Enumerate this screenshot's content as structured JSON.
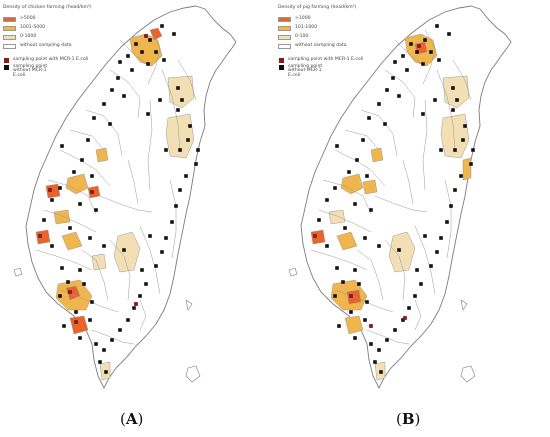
{
  "panels": [
    {
      "id": "A",
      "caption_open": "(",
      "caption_letter": "A",
      "caption_close": ")",
      "legend": {
        "title": "Density of chicken farming (head/km²)",
        "classes": [
          {
            "label": ">5000",
            "color": "#e8642a"
          },
          {
            "label": "1001-5000",
            "color": "#f0b54c"
          },
          {
            "label": "0-1000",
            "color": "#f2dfb4"
          },
          {
            "label": "without sampling data",
            "color": "#ffffff"
          }
        ],
        "points": [
          {
            "label": "sampling point with MCR-1 E.coli",
            "color": "#8b1a1a"
          },
          {
            "label": "sampling point without MCR-1 E.coli",
            "color": "#111111"
          }
        ]
      }
    },
    {
      "id": "B",
      "caption_open": "(",
      "caption_letter": "B",
      "caption_close": ")",
      "legend": {
        "title": "Density of pig farming (head/km²)",
        "classes": [
          {
            "label": ">1000",
            "color": "#e8642a"
          },
          {
            "label": "101-1000",
            "color": "#f0b54c"
          },
          {
            "label": "0-100",
            "color": "#f2dfb4"
          },
          {
            "label": "without sampling data",
            "color": "#ffffff"
          }
        ],
        "points": [
          {
            "label": "sampling point with MCR-1 E.coli",
            "color": "#8b1a1a"
          },
          {
            "label": "sampling point without MCR-1 E.coli",
            "color": "#111111"
          }
        ]
      }
    }
  ],
  "colors": {
    "boundary": "#9a9a9a",
    "coast": "#7d7d7d",
    "land": "#ffffff"
  }
}
